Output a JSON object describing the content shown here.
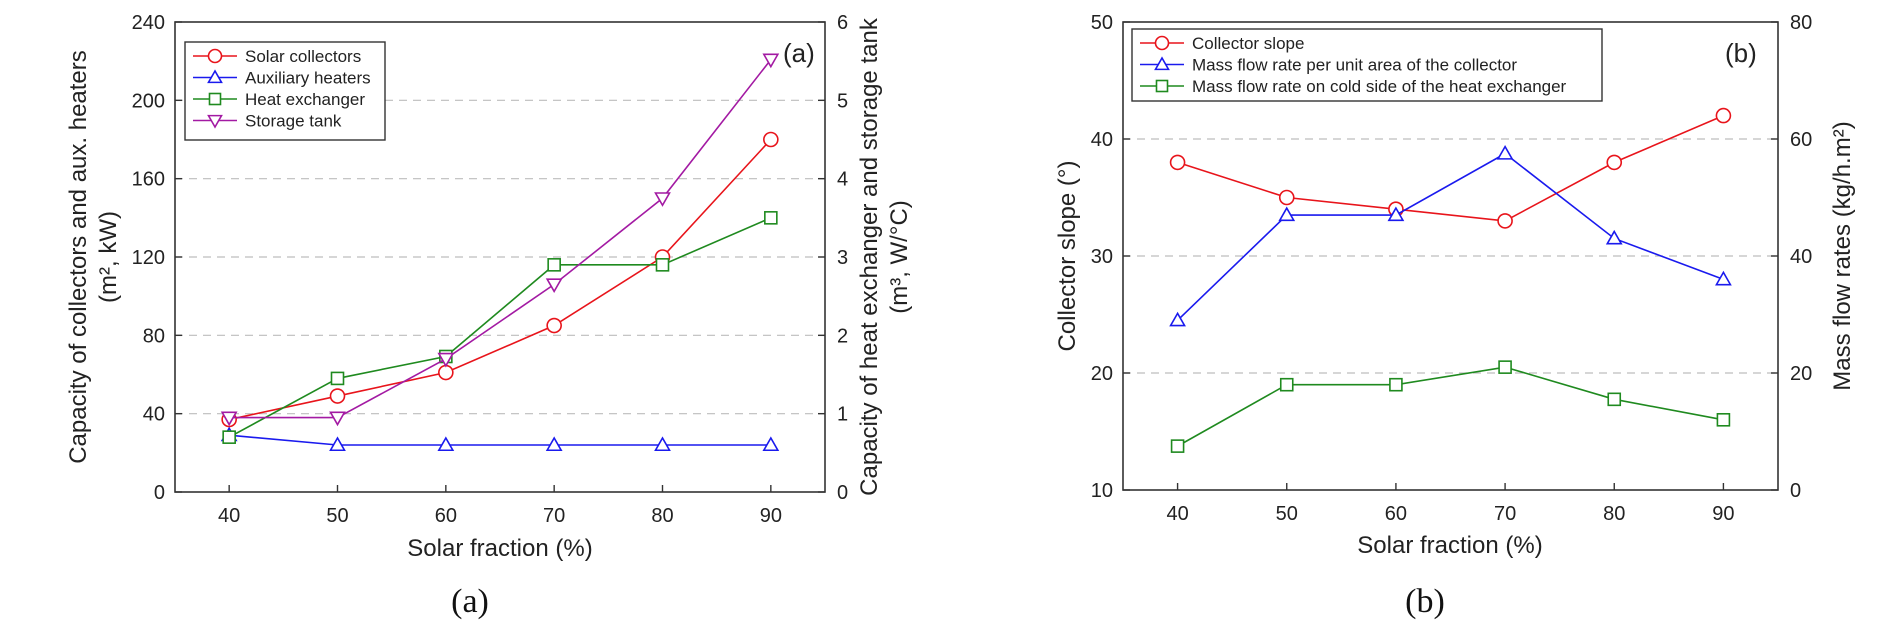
{
  "chart_data": [
    {
      "type": "line",
      "panel_tag": "(a)",
      "caption": "(a)",
      "x": [
        40,
        50,
        60,
        70,
        80,
        90
      ],
      "xlabel": "Solar fraction (%)",
      "xlim": [
        35,
        95
      ],
      "xticks": [
        40,
        50,
        60,
        70,
        80,
        90
      ],
      "y_left": {
        "label_line1": "Capacity of collectors and aux. heaters",
        "label_line2": "(m², kW)",
        "lim": [
          0,
          240
        ],
        "ticks": [
          0,
          40,
          80,
          120,
          160,
          200,
          240
        ]
      },
      "y_right": {
        "label_line1": "Capacity of heat exchanger and storage tank",
        "label_line2": "(m³, W/°C)",
        "lim": [
          0,
          6
        ],
        "ticks": [
          0,
          1,
          2,
          3,
          4,
          5,
          6
        ]
      },
      "grid": "horizontal dashed",
      "legend_position": "top-left",
      "series": [
        {
          "name": "Solar collectors",
          "axis": "left",
          "color": "#e8141b",
          "marker": "circle",
          "values": [
            37,
            49,
            61,
            85,
            120,
            180
          ]
        },
        {
          "name": "Auxiliary heaters",
          "axis": "left",
          "color": "#1a1aee",
          "marker": "triangle-up",
          "values": [
            29,
            24,
            24,
            24,
            24,
            24
          ]
        },
        {
          "name": "Heat exchanger",
          "axis": "right",
          "color": "#1f8a1f",
          "marker": "square",
          "values": [
            0.7,
            1.45,
            1.73,
            2.9,
            2.9,
            3.5
          ]
        },
        {
          "name": "Storage tank",
          "axis": "right",
          "color": "#a31aa3",
          "marker": "triangle-down",
          "values": [
            0.95,
            0.95,
            1.7,
            2.65,
            3.75,
            5.52
          ]
        }
      ]
    },
    {
      "type": "line",
      "panel_tag": "(b)",
      "caption": "(b)",
      "x": [
        40,
        50,
        60,
        70,
        80,
        90
      ],
      "xlabel": "Solar fraction (%)",
      "xlim": [
        35,
        95
      ],
      "xticks": [
        40,
        50,
        60,
        70,
        80,
        90
      ],
      "y_left": {
        "label_line1": "Collector slope (°)",
        "lim": [
          10,
          50
        ],
        "ticks": [
          10,
          20,
          30,
          40,
          50
        ]
      },
      "y_right": {
        "label_line1": "Mass flow rates (kg/h.m²)",
        "lim": [
          0,
          80
        ],
        "ticks": [
          0,
          20,
          40,
          60,
          80
        ]
      },
      "grid": "horizontal dashed",
      "legend_position": "top-left",
      "series": [
        {
          "name": "Collector slope",
          "axis": "left",
          "color": "#e8141b",
          "marker": "circle",
          "values": [
            38,
            35,
            34,
            33,
            38,
            42
          ]
        },
        {
          "name": "Mass flow rate per unit area of the collector",
          "axis": "right",
          "color": "#1a1aee",
          "marker": "triangle-up",
          "values": [
            29,
            47,
            47,
            57.5,
            43,
            36
          ]
        },
        {
          "name": "Mass flow rate on cold side of the heat exchanger",
          "axis": "right",
          "color": "#1f8a1f",
          "marker": "square",
          "values": [
            7.5,
            18,
            18,
            21,
            15.5,
            12
          ]
        }
      ]
    }
  ]
}
